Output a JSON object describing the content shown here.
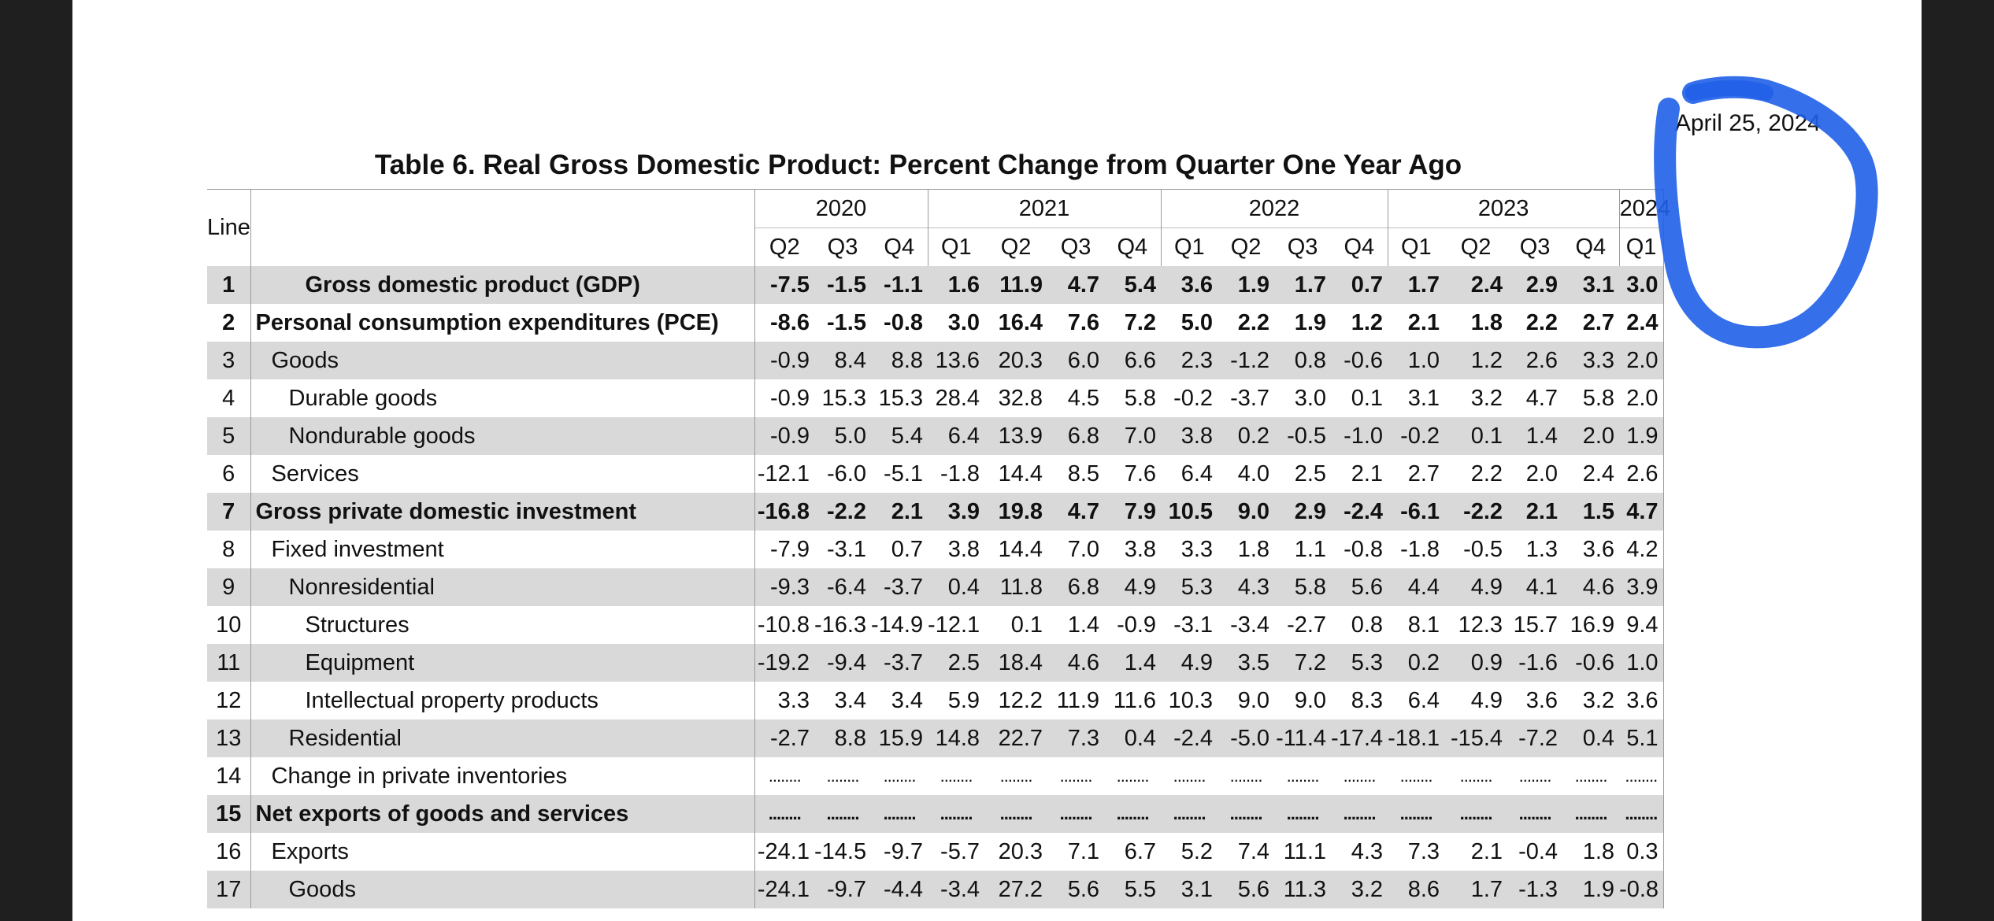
{
  "report": {
    "date": "April 25, 2024",
    "title": "Table 6. Real Gross Domestic Product: Percent Change from Quarter One Year Ago"
  },
  "header": {
    "line_label": "Line",
    "years": [
      "2020",
      "2021",
      "2022",
      "2023",
      "2024"
    ],
    "quarters": [
      "Q2",
      "Q3",
      "Q4",
      "Q1",
      "Q2",
      "Q3",
      "Q4",
      "Q1",
      "Q2",
      "Q3",
      "Q4",
      "Q1",
      "Q2",
      "Q3",
      "Q4",
      "Q1"
    ]
  },
  "annotation": {
    "color": "#1f5fe8"
  },
  "rows": [
    {
      "line": "1",
      "label": "Gross domestic product (GDP)",
      "values": [
        "-7.5",
        "-1.5",
        "-1.1",
        "1.6",
        "11.9",
        "4.7",
        "5.4",
        "3.6",
        "1.9",
        "1.7",
        "0.7",
        "1.7",
        "2.4",
        "2.9",
        "3.1",
        "3.0"
      ]
    },
    {
      "line": "2",
      "label": "Personal consumption expenditures (PCE)",
      "values": [
        "-8.6",
        "-1.5",
        "-0.8",
        "3.0",
        "16.4",
        "7.6",
        "7.2",
        "5.0",
        "2.2",
        "1.9",
        "1.2",
        "2.1",
        "1.8",
        "2.2",
        "2.7",
        "2.4"
      ]
    },
    {
      "line": "3",
      "label": "Goods",
      "values": [
        "-0.9",
        "8.4",
        "8.8",
        "13.6",
        "20.3",
        "6.0",
        "6.6",
        "2.3",
        "-1.2",
        "0.8",
        "-0.6",
        "1.0",
        "1.2",
        "2.6",
        "3.3",
        "2.0"
      ]
    },
    {
      "line": "4",
      "label": "Durable goods",
      "values": [
        "-0.9",
        "15.3",
        "15.3",
        "28.4",
        "32.8",
        "4.5",
        "5.8",
        "-0.2",
        "-3.7",
        "3.0",
        "0.1",
        "3.1",
        "3.2",
        "4.7",
        "5.8",
        "2.0"
      ]
    },
    {
      "line": "5",
      "label": "Nondurable goods",
      "values": [
        "-0.9",
        "5.0",
        "5.4",
        "6.4",
        "13.9",
        "6.8",
        "7.0",
        "3.8",
        "0.2",
        "-0.5",
        "-1.0",
        "-0.2",
        "0.1",
        "1.4",
        "2.0",
        "1.9"
      ]
    },
    {
      "line": "6",
      "label": "Services",
      "values": [
        "-12.1",
        "-6.0",
        "-5.1",
        "-1.8",
        "14.4",
        "8.5",
        "7.6",
        "6.4",
        "4.0",
        "2.5",
        "2.1",
        "2.7",
        "2.2",
        "2.0",
        "2.4",
        "2.6"
      ]
    },
    {
      "line": "7",
      "label": "Gross private domestic investment",
      "values": [
        "-16.8",
        "-2.2",
        "2.1",
        "3.9",
        "19.8",
        "4.7",
        "7.9",
        "10.5",
        "9.0",
        "2.9",
        "-2.4",
        "-6.1",
        "-2.2",
        "2.1",
        "1.5",
        "4.7"
      ]
    },
    {
      "line": "8",
      "label": "Fixed investment",
      "values": [
        "-7.9",
        "-3.1",
        "0.7",
        "3.8",
        "14.4",
        "7.0",
        "3.8",
        "3.3",
        "1.8",
        "1.1",
        "-0.8",
        "-1.8",
        "-0.5",
        "1.3",
        "3.6",
        "4.2"
      ]
    },
    {
      "line": "9",
      "label": "Nonresidential",
      "values": [
        "-9.3",
        "-6.4",
        "-3.7",
        "0.4",
        "11.8",
        "6.8",
        "4.9",
        "5.3",
        "4.3",
        "5.8",
        "5.6",
        "4.4",
        "4.9",
        "4.1",
        "4.6",
        "3.9"
      ]
    },
    {
      "line": "10",
      "label": "Structures",
      "values": [
        "-10.8",
        "-16.3",
        "-14.9",
        "-12.1",
        "0.1",
        "1.4",
        "-0.9",
        "-3.1",
        "-3.4",
        "-2.7",
        "0.8",
        "8.1",
        "12.3",
        "15.7",
        "16.9",
        "9.4"
      ]
    },
    {
      "line": "11",
      "label": "Equipment",
      "values": [
        "-19.2",
        "-9.4",
        "-3.7",
        "2.5",
        "18.4",
        "4.6",
        "1.4",
        "4.9",
        "3.5",
        "7.2",
        "5.3",
        "0.2",
        "0.9",
        "-1.6",
        "-0.6",
        "1.0"
      ]
    },
    {
      "line": "12",
      "label": "Intellectual property products",
      "values": [
        "3.3",
        "3.4",
        "3.4",
        "5.9",
        "12.2",
        "11.9",
        "11.6",
        "10.3",
        "9.0",
        "9.0",
        "8.3",
        "6.4",
        "4.9",
        "3.6",
        "3.2",
        "3.6"
      ]
    },
    {
      "line": "13",
      "label": "Residential",
      "values": [
        "-2.7",
        "8.8",
        "15.9",
        "14.8",
        "22.7",
        "7.3",
        "0.4",
        "-2.4",
        "-5.0",
        "-11.4",
        "-17.4",
        "-18.1",
        "-15.4",
        "-7.2",
        "0.4",
        "5.1"
      ]
    },
    {
      "line": "14",
      "label": "Change in private inventories",
      "values": [
        "........",
        "........",
        "........",
        "........",
        "........",
        "........",
        "........",
        "........",
        "........",
        "........",
        "........",
        "........",
        "........",
        "........",
        "........",
        "........"
      ]
    },
    {
      "line": "15",
      "label": "Net exports of goods and services",
      "values": [
        "........",
        "........",
        "........",
        "........",
        "........",
        "........",
        "........",
        "........",
        "........",
        "........",
        "........",
        "........",
        "........",
        "........",
        "........",
        "........"
      ]
    },
    {
      "line": "16",
      "label": "Exports",
      "values": [
        "-24.1",
        "-14.5",
        "-9.7",
        "-5.7",
        "20.3",
        "7.1",
        "6.7",
        "5.2",
        "7.4",
        "11.1",
        "4.3",
        "7.3",
        "2.1",
        "-0.4",
        "1.8",
        "0.3"
      ]
    },
    {
      "line": "17",
      "label": "Goods",
      "values": [
        "-24.1",
        "-9.7",
        "-4.4",
        "-3.4",
        "27.2",
        "5.6",
        "5.5",
        "3.1",
        "5.6",
        "11.3",
        "3.2",
        "8.6",
        "1.7",
        "-1.3",
        "1.9",
        "-0.8"
      ]
    }
  ]
}
